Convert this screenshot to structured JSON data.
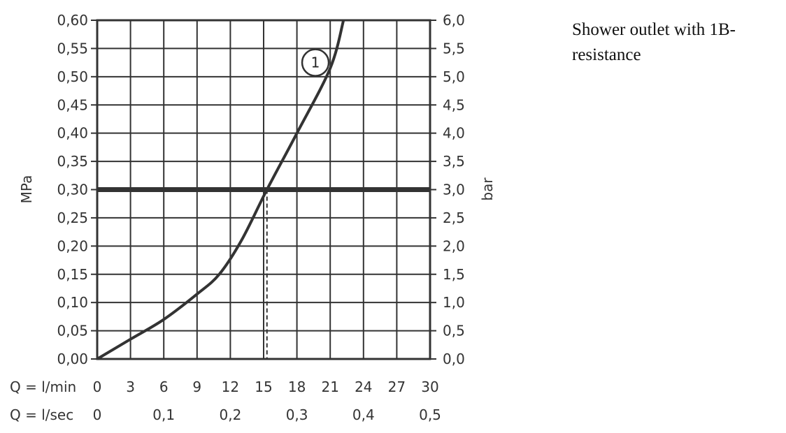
{
  "note": {
    "line1": "Shower outlet with 1B-",
    "line2": "resistance"
  },
  "chart_data": {
    "type": "line",
    "ylabel_left": "MPa",
    "ylabel_right": "bar",
    "ylim": [
      0,
      0.6
    ],
    "xlim": [
      0,
      30
    ],
    "yticks_left": [
      "0,00",
      "0,05",
      "0,10",
      "0,15",
      "0,20",
      "0,25",
      "0,30",
      "0,35",
      "0,40",
      "0,45",
      "0,50",
      "0,55",
      "0,60"
    ],
    "yticks_right": [
      "0,0",
      "0,5",
      "1,0",
      "1,5",
      "2,0",
      "2,5",
      "3,0",
      "3,5",
      "4,0",
      "4,5",
      "5,0",
      "5,5",
      "6,0"
    ],
    "x_primary": {
      "label": "Q = l/min",
      "ticks": [
        {
          "value": 0,
          "label": "0"
        },
        {
          "value": 3,
          "label": "3"
        },
        {
          "value": 6,
          "label": "6"
        },
        {
          "value": 9,
          "label": "9"
        },
        {
          "value": 12,
          "label": "12"
        },
        {
          "value": 15,
          "label": "15"
        },
        {
          "value": 18,
          "label": "18"
        },
        {
          "value": 21,
          "label": "21"
        },
        {
          "value": 24,
          "label": "24"
        },
        {
          "value": 27,
          "label": "27"
        },
        {
          "value": 30,
          "label": "30"
        }
      ]
    },
    "x_secondary": {
      "label": "Q = l/sec",
      "ticks": [
        {
          "value": 0,
          "label": "0"
        },
        {
          "value": 6,
          "label": "0,1"
        },
        {
          "value": 12,
          "label": "0,2"
        },
        {
          "value": 18,
          "label": "0,3"
        },
        {
          "value": 24,
          "label": "0,4"
        },
        {
          "value": 30,
          "label": "0,5"
        }
      ]
    },
    "series": [
      {
        "label": "1",
        "x": [
          0,
          3,
          6,
          9,
          11,
          13,
          15.3,
          18,
          21,
          22.2
        ],
        "y": [
          0,
          0.035,
          0.07,
          0.115,
          0.15,
          0.21,
          0.3,
          0.4,
          0.515,
          0.6
        ]
      }
    ],
    "reference_line": {
      "y": 0.3
    },
    "reference_drop_x": 15.3,
    "grid": true
  }
}
